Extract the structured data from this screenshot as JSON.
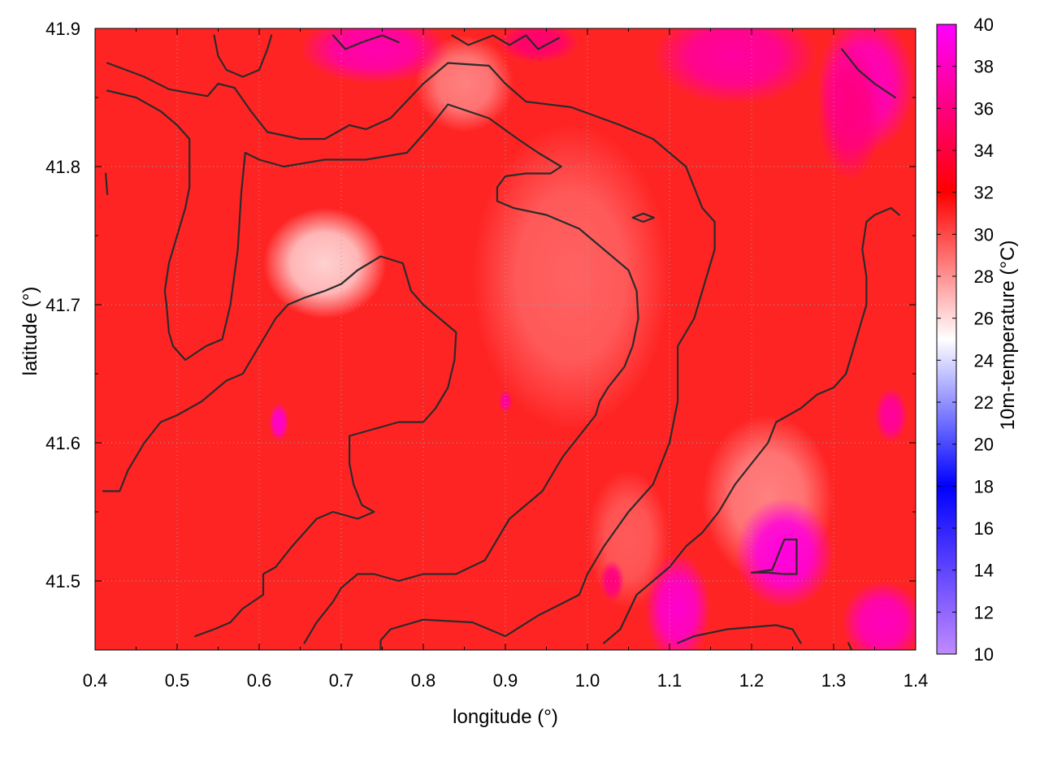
{
  "chart_data": {
    "type": "heatmap",
    "title": "",
    "xlabel": "longitude (°)",
    "ylabel": "latitude (°)",
    "colorbar_label": "10m-temperature (°C)",
    "xlim": [
      0.4,
      1.4
    ],
    "ylim": [
      41.45,
      41.9
    ],
    "x_ticks": [
      "0.4",
      "0.5",
      "0.6",
      "0.7",
      "0.8",
      "0.9",
      "1.0",
      "1.1",
      "1.2",
      "1.3",
      "1.4"
    ],
    "y_ticks": [
      "41.5",
      "41.6",
      "41.7",
      "41.8",
      "41.9"
    ],
    "colorbar_range": [
      10,
      40
    ],
    "colorbar_ticks": [
      "10",
      "12",
      "14",
      "16",
      "18",
      "20",
      "22",
      "24",
      "26",
      "28",
      "30",
      "32",
      "34",
      "36",
      "38",
      "40"
    ],
    "grid": true,
    "colormap": [
      {
        "value": 10,
        "color": "#c08aff"
      },
      {
        "value": 18,
        "color": "#0000ff"
      },
      {
        "value": 25,
        "color": "#ffffff"
      },
      {
        "value": 32,
        "color": "#ff0000"
      },
      {
        "value": 40,
        "color": "#ff00ff"
      }
    ],
    "background_temperature": 31,
    "regions": [
      {
        "name": "cool area west",
        "lon": 0.68,
        "lat": 41.73,
        "rx": 0.075,
        "ry": 0.04,
        "temp": 26.3
      },
      {
        "name": "cool area north",
        "lon": 0.85,
        "lat": 41.86,
        "rx": 0.06,
        "ry": 0.035,
        "temp": 28.5
      },
      {
        "name": "mild band",
        "lon": 0.98,
        "lat": 41.72,
        "rx": 0.12,
        "ry": 0.11,
        "temp": 29.3
      },
      {
        "name": "mild south center",
        "lon": 1.05,
        "lat": 41.53,
        "rx": 0.05,
        "ry": 0.05,
        "temp": 29.5
      },
      {
        "name": "mild south-east",
        "lon": 1.22,
        "lat": 41.56,
        "rx": 0.08,
        "ry": 0.06,
        "temp": 28.5
      },
      {
        "name": "hot north",
        "lon": 0.74,
        "lat": 41.885,
        "rx": 0.09,
        "ry": 0.025,
        "temp": 37.5
      },
      {
        "name": "hot north center",
        "lon": 0.94,
        "lat": 41.89,
        "rx": 0.05,
        "ry": 0.015,
        "temp": 35.5
      },
      {
        "name": "hot north-east",
        "lon": 1.18,
        "lat": 41.88,
        "rx": 0.1,
        "ry": 0.035,
        "temp": 37
      },
      {
        "name": "hot north-east corner",
        "lon": 1.34,
        "lat": 41.86,
        "rx": 0.06,
        "ry": 0.05,
        "temp": 38
      },
      {
        "name": "hot east",
        "lon": 1.32,
        "lat": 41.84,
        "rx": 0.04,
        "ry": 0.05,
        "temp": 36
      },
      {
        "name": "hot south-east",
        "lon": 1.24,
        "lat": 41.52,
        "rx": 0.06,
        "ry": 0.04,
        "temp": 39
      },
      {
        "name": "hot south",
        "lon": 1.11,
        "lat": 41.48,
        "rx": 0.04,
        "ry": 0.04,
        "temp": 38.5
      },
      {
        "name": "hot south-east corner",
        "lon": 1.36,
        "lat": 41.47,
        "rx": 0.05,
        "ry": 0.03,
        "temp": 38
      },
      {
        "name": "hot east middle",
        "lon": 1.37,
        "lat": 41.62,
        "rx": 0.02,
        "ry": 0.02,
        "temp": 37
      },
      {
        "name": "hot spot west",
        "lon": 0.624,
        "lat": 41.615,
        "rx": 0.012,
        "ry": 0.014,
        "temp": 38.5
      },
      {
        "name": "hot spot center",
        "lon": 0.9,
        "lat": 41.63,
        "rx": 0.008,
        "ry": 0.008,
        "temp": 37
      },
      {
        "name": "hot spot east",
        "lon": 1.03,
        "lat": 41.5,
        "rx": 0.015,
        "ry": 0.015,
        "temp": 36
      }
    ],
    "contours": [
      [
        [
          0.415,
          41.875
        ],
        [
          0.46,
          41.865
        ],
        [
          0.49,
          41.856
        ],
        [
          0.537,
          41.851
        ],
        [
          0.55,
          41.86
        ],
        [
          0.57,
          41.857
        ],
        [
          0.59,
          41.84
        ],
        [
          0.61,
          41.825
        ],
        [
          0.65,
          41.82
        ],
        [
          0.68,
          41.82
        ],
        [
          0.71,
          41.83
        ],
        [
          0.73,
          41.827
        ],
        [
          0.76,
          41.835
        ],
        [
          0.8,
          41.86
        ],
        [
          0.83,
          41.875
        ],
        [
          0.88,
          41.873
        ],
        [
          0.9,
          41.86
        ],
        [
          0.925,
          41.847
        ],
        [
          0.98,
          41.843
        ],
        [
          1.04,
          41.83
        ],
        [
          1.08,
          41.82
        ],
        [
          1.12,
          41.8
        ],
        [
          1.14,
          41.77
        ],
        [
          1.155,
          41.76
        ],
        [
          1.155,
          41.74
        ],
        [
          1.145,
          41.72
        ],
        [
          1.13,
          41.69
        ],
        [
          1.11,
          41.67
        ],
        [
          1.11,
          41.63
        ],
        [
          1.1,
          41.6
        ],
        [
          1.08,
          41.57
        ],
        [
          1.05,
          41.55
        ],
        [
          1.02,
          41.525
        ],
        [
          1.0,
          41.505
        ],
        [
          0.99,
          41.49
        ],
        [
          0.94,
          41.475
        ],
        [
          0.9,
          41.46
        ],
        [
          0.86,
          41.47
        ],
        [
          0.8,
          41.472
        ],
        [
          0.76,
          41.465
        ],
        [
          0.748,
          41.457
        ],
        [
          0.748,
          41.445
        ]
      ],
      [
        [
          0.415,
          41.855
        ],
        [
          0.45,
          41.85
        ],
        [
          0.48,
          41.84
        ],
        [
          0.5,
          41.83
        ],
        [
          0.515,
          41.82
        ],
        [
          0.515,
          41.8
        ],
        [
          0.515,
          41.785
        ],
        [
          0.51,
          41.77
        ],
        [
          0.5,
          41.75
        ],
        [
          0.49,
          41.73
        ],
        [
          0.485,
          41.71
        ],
        [
          0.487,
          41.7
        ],
        [
          0.49,
          41.68
        ],
        [
          0.495,
          41.67
        ],
        [
          0.51,
          41.66
        ],
        [
          0.535,
          41.67
        ],
        [
          0.555,
          41.675
        ],
        [
          0.565,
          41.7
        ],
        [
          0.574,
          41.74
        ],
        [
          0.578,
          41.78
        ],
        [
          0.583,
          41.81
        ],
        [
          0.6,
          41.805
        ],
        [
          0.63,
          41.8
        ],
        [
          0.68,
          41.805
        ],
        [
          0.73,
          41.805
        ],
        [
          0.78,
          41.81
        ],
        [
          0.81,
          41.83
        ],
        [
          0.83,
          41.845
        ],
        [
          0.88,
          41.835
        ],
        [
          0.915,
          41.82
        ],
        [
          0.94,
          41.81
        ],
        [
          0.968,
          41.8
        ],
        [
          0.955,
          41.795
        ],
        [
          0.925,
          41.795
        ],
        [
          0.9,
          41.793
        ],
        [
          0.89,
          41.785
        ],
        [
          0.89,
          41.775
        ],
        [
          0.91,
          41.77
        ],
        [
          0.95,
          41.765
        ],
        [
          0.99,
          41.755
        ],
        [
          1.02,
          41.74
        ],
        [
          1.05,
          41.725
        ],
        [
          1.06,
          41.71
        ],
        [
          1.062,
          41.69
        ],
        [
          1.055,
          41.67
        ],
        [
          1.045,
          41.655
        ],
        [
          1.025,
          41.64
        ],
        [
          1.015,
          41.63
        ],
        [
          1.01,
          41.62
        ],
        [
          0.99,
          41.605
        ],
        [
          0.97,
          41.59
        ],
        [
          0.96,
          41.58
        ],
        [
          0.945,
          41.565
        ],
        [
          0.925,
          41.555
        ],
        [
          0.905,
          41.545
        ],
        [
          0.89,
          41.53
        ],
        [
          0.875,
          41.515
        ],
        [
          0.84,
          41.505
        ],
        [
          0.8,
          41.505
        ],
        [
          0.77,
          41.5
        ],
        [
          0.74,
          41.505
        ],
        [
          0.72,
          41.505
        ],
        [
          0.7,
          41.495
        ],
        [
          0.69,
          41.485
        ],
        [
          0.67,
          41.47
        ],
        [
          0.655,
          41.455
        ]
      ],
      [
        [
          0.41,
          41.565
        ],
        [
          0.43,
          41.565
        ],
        [
          0.44,
          41.58
        ],
        [
          0.46,
          41.6
        ],
        [
          0.48,
          41.615
        ],
        [
          0.5,
          41.62
        ],
        [
          0.53,
          41.63
        ],
        [
          0.56,
          41.645
        ],
        [
          0.58,
          41.65
        ],
        [
          0.6,
          41.67
        ],
        [
          0.62,
          41.69
        ],
        [
          0.635,
          41.7
        ],
        [
          0.655,
          41.705
        ],
        [
          0.68,
          41.71
        ],
        [
          0.7,
          41.715
        ],
        [
          0.72,
          41.725
        ],
        [
          0.748,
          41.735
        ],
        [
          0.775,
          41.73
        ],
        [
          0.785,
          41.71
        ],
        [
          0.8,
          41.7
        ],
        [
          0.82,
          41.69
        ],
        [
          0.84,
          41.68
        ],
        [
          0.838,
          41.66
        ],
        [
          0.83,
          41.64
        ],
        [
          0.815,
          41.625
        ],
        [
          0.8,
          41.615
        ],
        [
          0.77,
          41.615
        ],
        [
          0.74,
          41.61
        ],
        [
          0.71,
          41.605
        ],
        [
          0.71,
          41.585
        ],
        [
          0.715,
          41.57
        ],
        [
          0.725,
          41.555
        ],
        [
          0.74,
          41.55
        ],
        [
          0.72,
          41.545
        ],
        [
          0.69,
          41.55
        ],
        [
          0.67,
          41.545
        ],
        [
          0.655,
          41.535
        ],
        [
          0.64,
          41.525
        ],
        [
          0.62,
          41.51
        ],
        [
          0.605,
          41.505
        ],
        [
          0.605,
          41.49
        ],
        [
          0.58,
          41.48
        ],
        [
          0.565,
          41.47
        ],
        [
          0.545,
          41.465
        ],
        [
          0.522,
          41.46
        ]
      ],
      [
        [
          1.02,
          41.455
        ],
        [
          1.04,
          41.465
        ],
        [
          1.06,
          41.49
        ],
        [
          1.08,
          41.5
        ],
        [
          1.1,
          41.51
        ],
        [
          1.12,
          41.525
        ],
        [
          1.14,
          41.535
        ],
        [
          1.16,
          41.55
        ],
        [
          1.18,
          41.57
        ],
        [
          1.2,
          41.585
        ],
        [
          1.22,
          41.6
        ],
        [
          1.23,
          41.615
        ],
        [
          1.245,
          41.62
        ],
        [
          1.26,
          41.625
        ],
        [
          1.28,
          41.635
        ],
        [
          1.3,
          41.64
        ],
        [
          1.315,
          41.65
        ],
        [
          1.325,
          41.67
        ],
        [
          1.335,
          41.69
        ],
        [
          1.34,
          41.7
        ],
        [
          1.34,
          41.72
        ],
        [
          1.335,
          41.74
        ],
        [
          1.34,
          41.76
        ],
        [
          1.35,
          41.765
        ],
        [
          1.37,
          41.77
        ],
        [
          1.38,
          41.765
        ]
      ],
      [
        [
          1.2,
          41.506
        ],
        [
          1.225,
          41.508
        ],
        [
          1.24,
          41.53
        ],
        [
          1.255,
          41.53
        ],
        [
          1.255,
          41.505
        ],
        [
          1.24,
          41.505
        ],
        [
          1.22,
          41.506
        ],
        [
          1.2,
          41.506
        ]
      ],
      [
        [
          1.055,
          41.763
        ],
        [
          1.068,
          41.766
        ],
        [
          1.081,
          41.763
        ],
        [
          1.068,
          41.76
        ],
        [
          1.055,
          41.763
        ]
      ],
      [
        [
          0.545,
          41.895
        ],
        [
          0.55,
          41.88
        ],
        [
          0.56,
          41.87
        ],
        [
          0.58,
          41.865
        ],
        [
          0.6,
          41.87
        ],
        [
          0.61,
          41.885
        ],
        [
          0.615,
          41.895
        ]
      ],
      [
        [
          0.69,
          41.895
        ],
        [
          0.705,
          41.885
        ],
        [
          0.725,
          41.89
        ],
        [
          0.75,
          41.895
        ],
        [
          0.77,
          41.89
        ]
      ],
      [
        [
          0.835,
          41.895
        ],
        [
          0.855,
          41.888
        ],
        [
          0.885,
          41.895
        ],
        [
          0.905,
          41.888
        ],
        [
          0.925,
          41.895
        ],
        [
          0.94,
          41.885
        ],
        [
          0.965,
          41.893
        ]
      ],
      [
        [
          1.31,
          41.885
        ],
        [
          1.33,
          41.87
        ],
        [
          1.35,
          41.86
        ],
        [
          1.375,
          41.85
        ]
      ],
      [
        [
          1.11,
          41.455
        ],
        [
          1.13,
          41.46
        ],
        [
          1.17,
          41.465
        ],
        [
          1.23,
          41.468
        ],
        [
          1.25,
          41.465
        ],
        [
          1.26,
          41.455
        ]
      ],
      [
        [
          0.413,
          41.795
        ],
        [
          0.415,
          41.78
        ]
      ],
      [
        [
          1.318,
          41.455
        ],
        [
          1.322,
          41.45
        ]
      ]
    ]
  }
}
